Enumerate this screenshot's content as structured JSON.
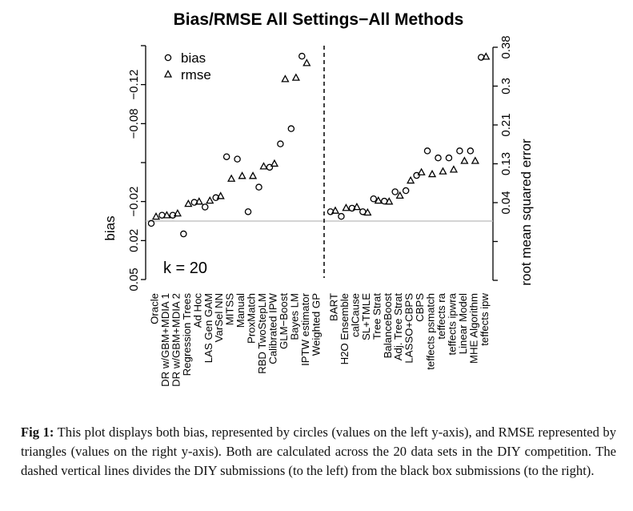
{
  "chart_data": {
    "type": "scatter",
    "title": "Bias/RMSE All Settings−All Methods",
    "ylabel_left": "bias",
    "ylabel_right": "root mean squared error",
    "left_axis": {
      "range": [
        -0.15,
        0.05
      ],
      "reversed": true,
      "ticks": [
        -0.15,
        -0.1167,
        -0.0833,
        -0.05,
        -0.0167,
        0.0167,
        0.05
      ],
      "tick_labels": [
        "",
        "−0.12",
        "−0.08",
        "",
        "−0.02",
        "0.02",
        "0.05"
      ]
    },
    "right_axis": {
      "range": [
        -0.13,
        0.38
      ],
      "ticks": [
        0.38,
        0.295,
        0.21,
        0.125,
        0.04,
        -0.045,
        -0.13
      ],
      "tick_labels": [
        "0.38",
        "0.3",
        "0.21",
        "0.13",
        "0.04",
        "",
        ""
      ]
    },
    "reference_line": {
      "bias": 0,
      "color": "#bbbbbb"
    },
    "legend": {
      "placement": "top-left",
      "entries": [
        {
          "label": "bias",
          "marker": "circle"
        },
        {
          "label": "rmse",
          "marker": "triangle"
        }
      ]
    },
    "annotation": "k = 20",
    "groups": [
      {
        "group": "DIY",
        "methods": [
          "Oracle",
          "DR w/GBM+MDIA 1",
          "DR w/GBM+MDIA 2",
          "Regression Trees",
          "Ad Hoc",
          "LAS Gen GAM",
          "VarSel NN",
          "MITSS",
          "Manual",
          "ProxMatch",
          "RBD TwoStepLM",
          "Calibrated IPW",
          "GLM−Boost",
          "Bayes LM",
          "IPTW estimator",
          "Weighted GP"
        ],
        "bias": [
          0.002,
          -0.005,
          -0.005,
          0.011,
          -0.016,
          -0.012,
          -0.02,
          -0.055,
          -0.053,
          -0.008,
          -0.029,
          -0.046,
          -0.066,
          -0.079,
          -0.141,
          null
        ],
        "rmse": [
          0.01,
          0.013,
          0.017,
          0.038,
          0.043,
          0.045,
          0.055,
          0.093,
          0.099,
          0.099,
          0.12,
          0.126,
          0.311,
          0.314,
          0.346,
          null
        ]
      },
      {
        "group": "Black box",
        "methods": [
          "BART",
          "H2O Ensemble",
          "calCause",
          "SL+TMLE",
          "Tree Strat",
          "BalanceBoost",
          "Adj. Tree Strat",
          "LASSO+CBPS",
          "CBPS",
          "teffects psmatch",
          "teffects ra",
          "teffects ipwra",
          "Linear Model",
          "MHE Algorithm",
          "teffects ipw"
        ],
        "bias": [
          -0.008,
          -0.004,
          -0.011,
          -0.008,
          -0.019,
          -0.017,
          -0.025,
          -0.026,
          -0.039,
          -0.06,
          -0.054,
          -0.054,
          -0.06,
          -0.06,
          -0.14
        ],
        "rmse": [
          0.023,
          0.029,
          0.031,
          0.019,
          0.045,
          0.043,
          0.056,
          0.089,
          0.107,
          0.103,
          0.109,
          0.113,
          0.132,
          0.132,
          0.36
        ]
      }
    ],
    "divider": "dashed vertical line between groups"
  },
  "caption": {
    "label": "Fig 1:",
    "text": " This plot displays both bias, represented by circles (values on the left y-axis), and RMSE represented by triangles (values on the right y-axis). Both are calculated across the 20 data sets in the DIY competition. The dashed vertical lines divides the DIY submissions (to the left) from the black box submissions (to the right)."
  }
}
